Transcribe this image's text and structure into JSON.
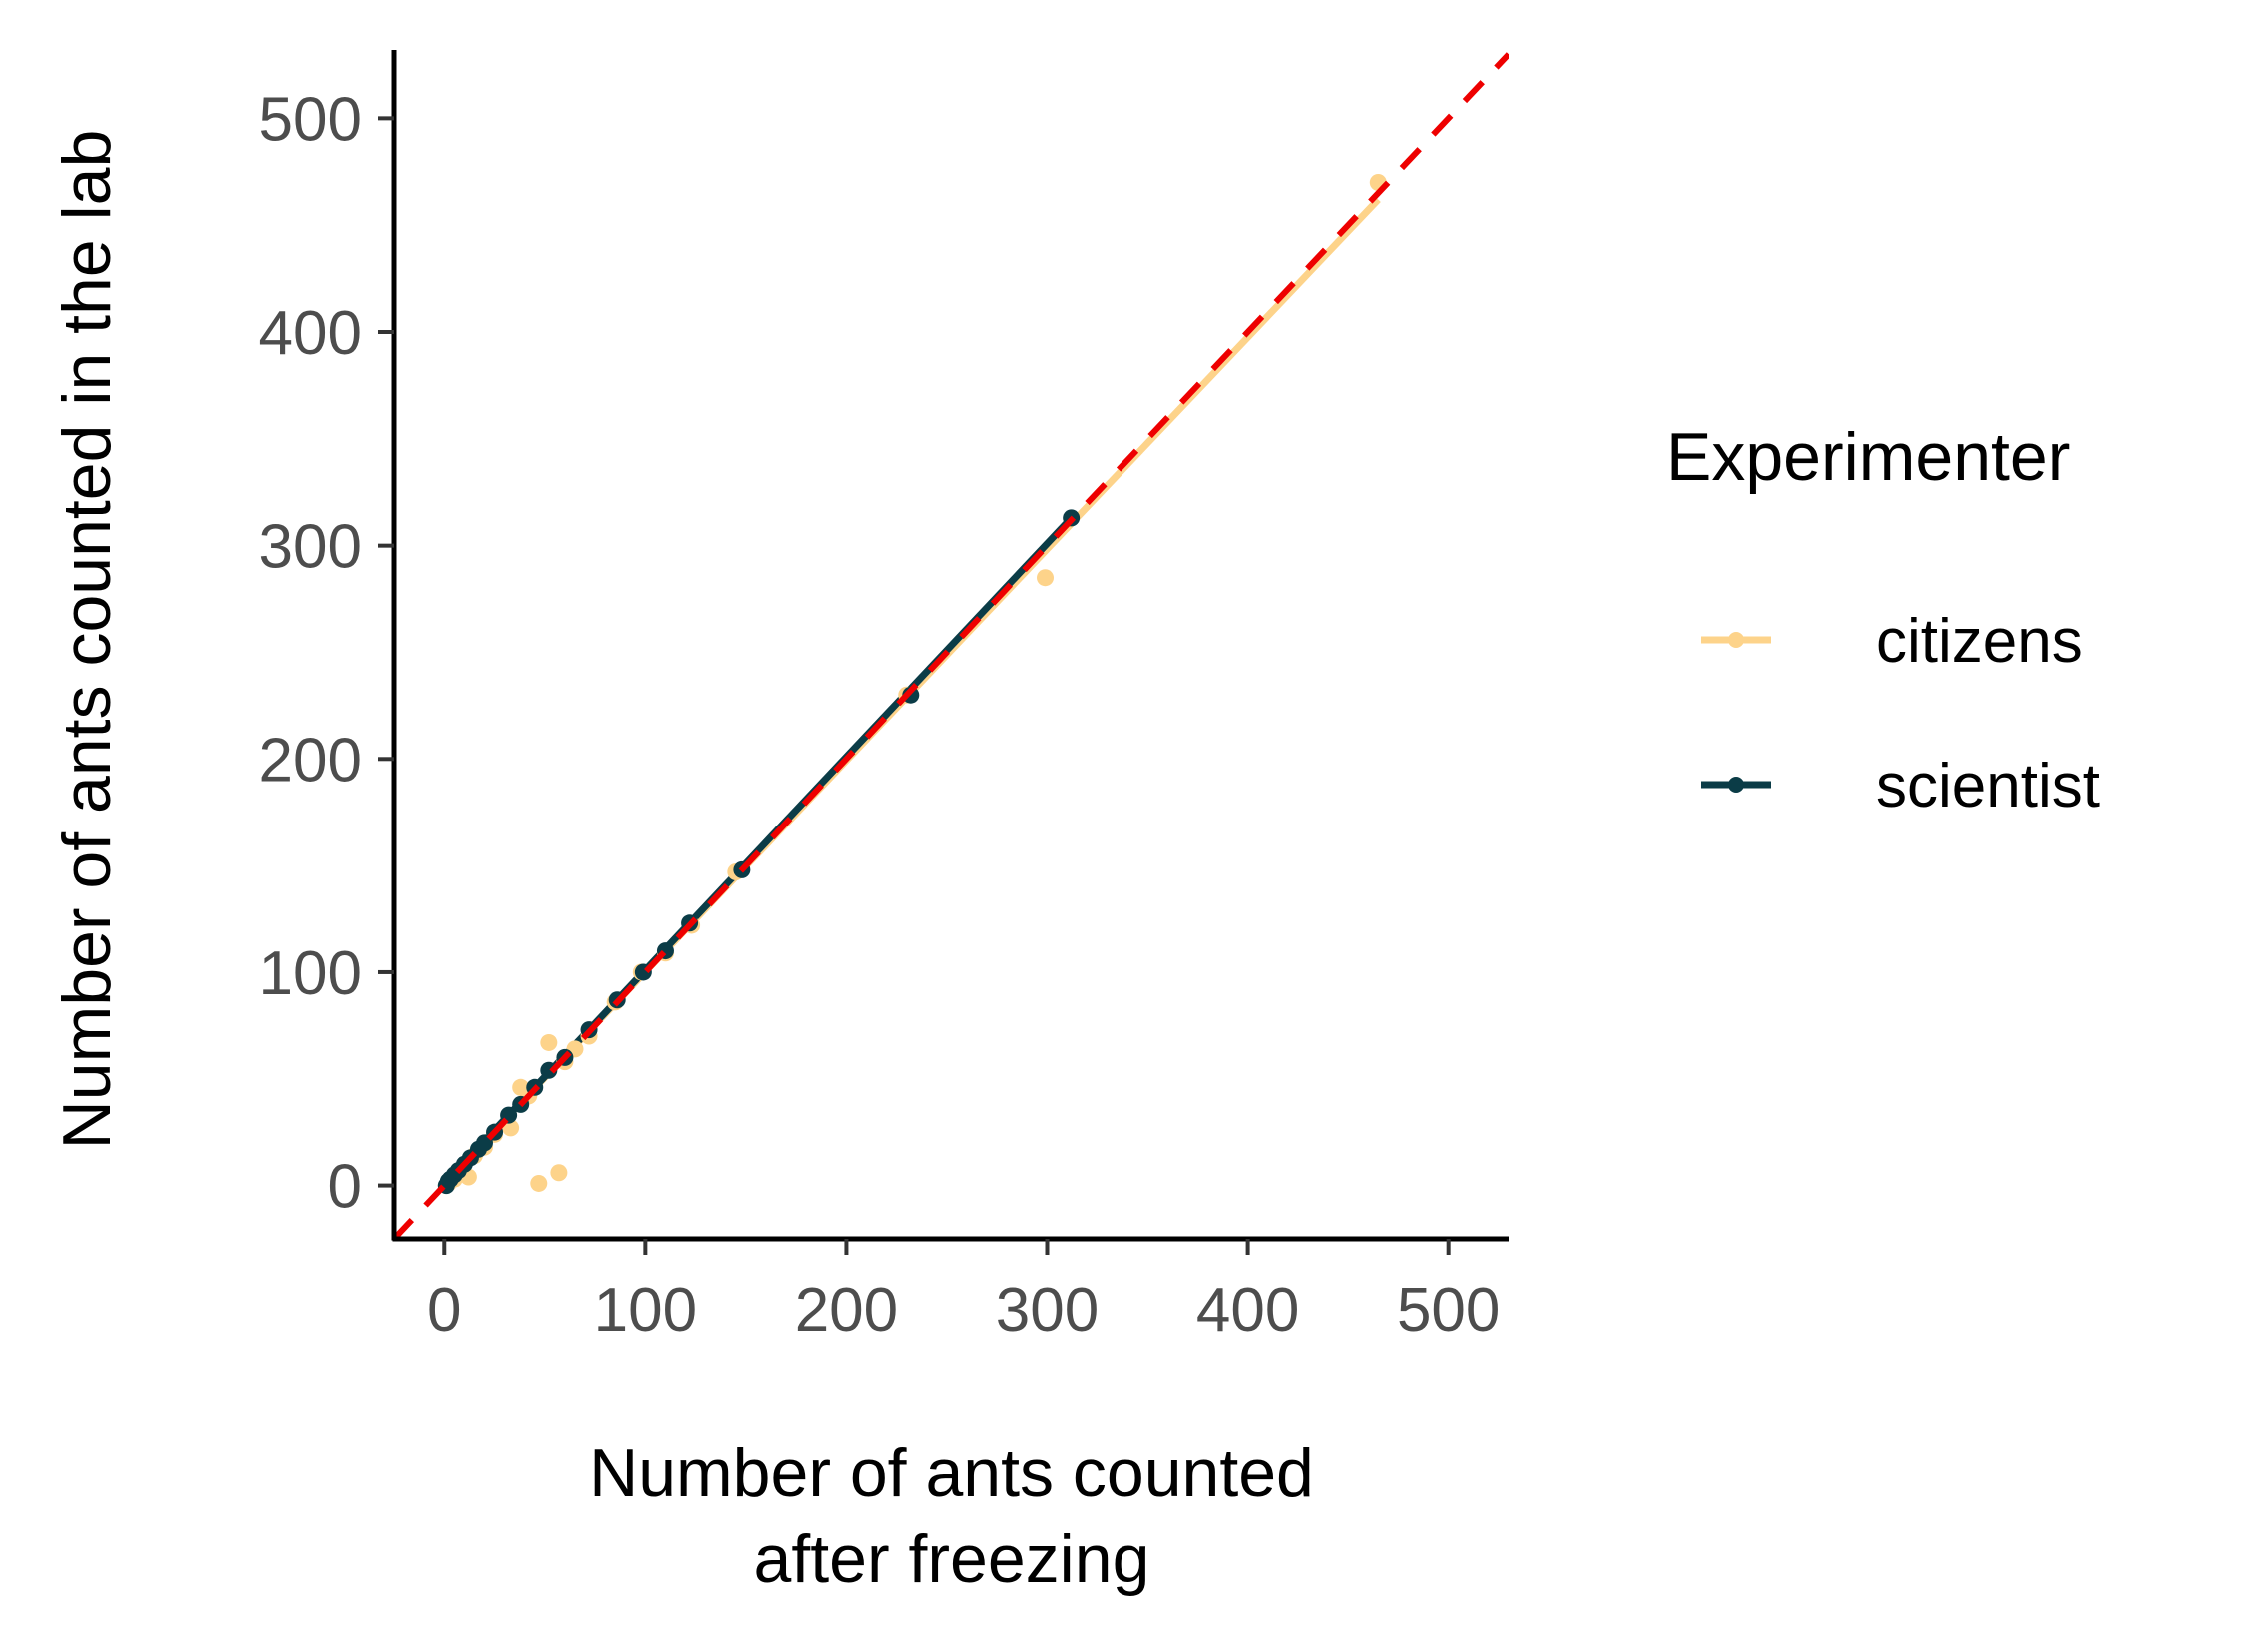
{
  "chart_data": {
    "type": "scatter",
    "xlabel": [
      "Number of ants counted",
      "after freezing"
    ],
    "ylabel": "Number of ants counted in the lab",
    "xlim": [
      -25,
      530
    ],
    "ylim": [
      -25,
      532
    ],
    "x_ticks": [
      0,
      100,
      200,
      300,
      400,
      500
    ],
    "y_ticks": [
      0,
      100,
      200,
      300,
      400,
      500
    ],
    "grid": false,
    "legend": {
      "title": "Experimenter",
      "placement": "right",
      "entries": [
        "citizens",
        "scientist"
      ]
    },
    "reference_line": {
      "style": "dashed",
      "color": "#ee0000",
      "slope": 1,
      "intercept": 0
    },
    "series": [
      {
        "name": "citizens",
        "color": "#fdd38a",
        "points": [
          [
            2,
            1
          ],
          [
            5,
            3
          ],
          [
            8,
            6
          ],
          [
            12,
            4
          ],
          [
            15,
            14
          ],
          [
            20,
            18
          ],
          [
            25,
            24
          ],
          [
            33,
            27
          ],
          [
            38,
            46
          ],
          [
            42,
            42
          ],
          [
            47,
            1
          ],
          [
            52,
            67
          ],
          [
            57,
            6
          ],
          [
            60,
            58
          ],
          [
            65,
            64
          ],
          [
            72,
            70
          ],
          [
            85,
            86
          ],
          [
            98,
            100
          ],
          [
            110,
            109
          ],
          [
            123,
            122
          ],
          [
            145,
            147
          ],
          [
            230,
            230
          ],
          [
            299,
            285
          ],
          [
            465,
            470
          ]
        ],
        "fit_line": [
          [
            0,
            1
          ],
          [
            465,
            462
          ]
        ]
      },
      {
        "name": "scientist",
        "color": "#0b3c47",
        "points": [
          [
            1,
            0
          ],
          [
            2,
            2
          ],
          [
            3,
            3
          ],
          [
            5,
            5
          ],
          [
            7,
            7
          ],
          [
            10,
            10
          ],
          [
            13,
            13
          ],
          [
            17,
            17
          ],
          [
            20,
            20
          ],
          [
            25,
            25
          ],
          [
            32,
            33
          ],
          [
            38,
            38
          ],
          [
            45,
            46
          ],
          [
            52,
            54
          ],
          [
            60,
            60
          ],
          [
            72,
            73
          ],
          [
            86,
            87
          ],
          [
            99,
            100
          ],
          [
            110,
            110
          ],
          [
            122,
            123
          ],
          [
            148,
            148
          ],
          [
            232,
            230
          ],
          [
            312,
            313
          ]
        ],
        "fit_line": [
          [
            0,
            1
          ],
          [
            312,
            313
          ]
        ]
      }
    ]
  }
}
